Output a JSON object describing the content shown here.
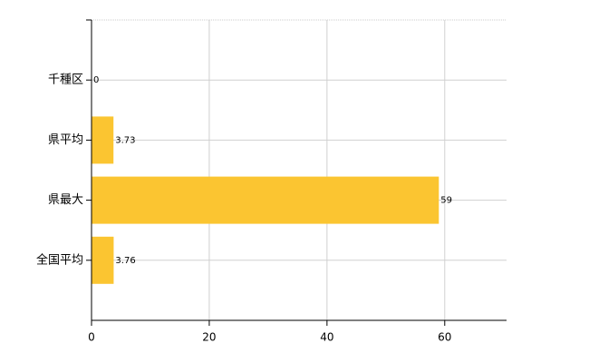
{
  "chart_data": {
    "type": "hbar",
    "categories": [
      "千種区",
      "県平均",
      "県最大",
      "全国平均"
    ],
    "values": [
      0,
      3.73,
      59,
      3.76
    ],
    "color": "#fbc531",
    "xlim": [
      0,
      70.5
    ],
    "xticks": [
      0,
      20,
      40,
      60
    ],
    "grid": true
  }
}
